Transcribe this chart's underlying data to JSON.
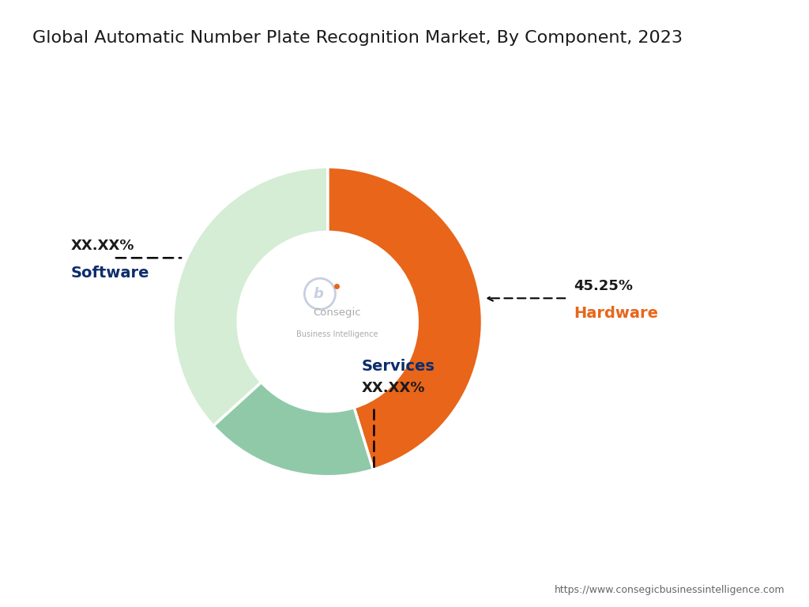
{
  "title": "Global Automatic Number Plate Recognition Market, By Component, 2023",
  "segments": [
    {
      "label": "Hardware",
      "value": 45.25,
      "display": "45.25%",
      "color": "#E8651A"
    },
    {
      "label": "Services",
      "value": 18.0,
      "display": "XX.XX%",
      "color": "#90C9A8"
    },
    {
      "label": "Software",
      "value": 36.75,
      "display": "XX.XX%",
      "color": "#D4EDD4"
    }
  ],
  "background_color": "#FFFFFF",
  "title_color": "#1a1a1a",
  "title_fontsize": 16,
  "label_color_dark_blue": "#0D2D6B",
  "label_color_orange": "#E8651A",
  "annotation_fontsize": 13,
  "annotation_label_fontsize": 14,
  "footer_text": "https://www.consegicbusinessintelligence.com",
  "footer_color": "#666666",
  "center_text1": "Consegic",
  "center_text2": "Business Intelligence",
  "donut_width": 0.42,
  "start_angle": 90
}
